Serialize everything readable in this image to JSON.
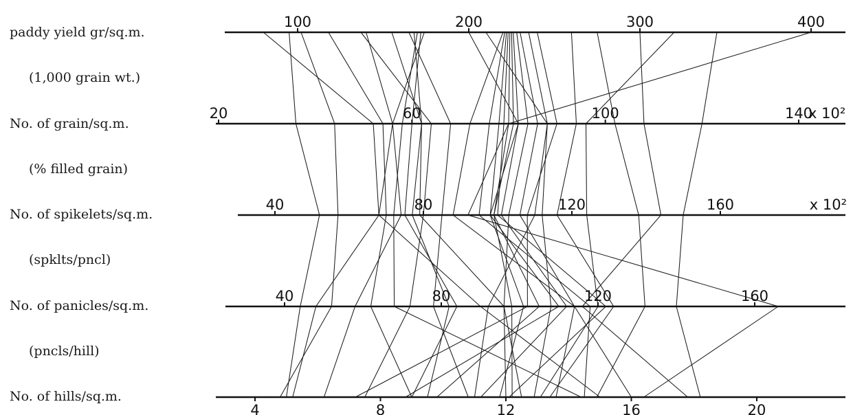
{
  "chart_data": {
    "type": "parallel_coordinates",
    "title": "",
    "row_labels": [
      "paddy yield gr/sq.m.",
      "(1,000 grain wt.)",
      "No. of grain/sq.m.",
      "(% filled grain)",
      "No. of spikelets/sq.m.",
      "(spklts/pncl)",
      "No. of panicles/sq.m.",
      "(pncls/hill)",
      "No. of hills/sq.m."
    ],
    "axes": [
      {
        "name": "paddy yield gr/sq.m.",
        "ticks": [
          100,
          200,
          300,
          400
        ],
        "tick_labels": [
          "100",
          "200",
          "300",
          "400"
        ],
        "suffix": ""
      },
      {
        "name": "No. of grain/sq.m.",
        "ticks": [
          20,
          60,
          100,
          140
        ],
        "tick_labels": [
          "20",
          "60",
          "100",
          "140"
        ],
        "suffix": "x 10²"
      },
      {
        "name": "No. of spikelets/sq.m.",
        "ticks": [
          40,
          80,
          120,
          160
        ],
        "tick_labels": [
          "40",
          "80",
          "120",
          "160"
        ],
        "suffix": "x 10²"
      },
      {
        "name": "No. of panicles/sq.m.",
        "ticks": [
          40,
          80,
          120,
          160
        ],
        "tick_labels": [
          "40",
          "80",
          "120",
          "160"
        ],
        "suffix": ""
      },
      {
        "name": "No. of hills/sq.m.",
        "ticks": [
          4,
          8,
          12,
          16,
          20
        ],
        "tick_labels": [
          "4",
          "8",
          "12",
          "16",
          "20"
        ],
        "suffix": ""
      }
    ],
    "lines": [
      [
        80,
        52,
        68,
        90,
        15
      ],
      [
        95,
        36,
        52,
        44,
        5
      ],
      [
        102,
        44,
        57,
        52,
        4.8
      ],
      [
        118,
        54,
        70,
        62,
        9
      ],
      [
        137,
        64,
        80,
        72,
        7.5
      ],
      [
        140,
        56,
        74,
        58,
        6.2
      ],
      [
        155,
        62,
        77,
        82,
        9.5
      ],
      [
        165,
        68,
        85,
        78,
        10.8
      ],
      [
        168,
        62,
        79,
        96,
        12
      ],
      [
        170,
        58,
        72,
        68,
        14.4
      ],
      [
        172,
        60,
        75,
        84,
        9
      ],
      [
        174,
        56,
        68,
        48,
        5.2
      ],
      [
        200,
        82,
        98,
        110,
        8.8
      ],
      [
        210,
        88,
        110,
        92,
        11
      ],
      [
        220,
        72,
        88,
        114,
        13.6
      ],
      [
        221,
        76,
        95,
        118,
        14.5
      ],
      [
        222,
        78,
        98,
        101,
        11.8
      ],
      [
        223,
        79,
        100,
        122,
        12.1
      ],
      [
        224,
        80,
        99,
        98,
        12.2
      ],
      [
        225,
        81,
        99,
        105,
        9.8
      ],
      [
        226,
        82,
        101,
        112,
        11.2
      ],
      [
        228,
        84,
        103,
        96,
        12.5
      ],
      [
        230,
        86,
        106,
        114,
        16
      ],
      [
        235,
        88,
        112,
        108,
        12.9
      ],
      [
        240,
        90,
        108,
        102,
        7.2
      ],
      [
        260,
        94,
        116,
        124,
        13.4
      ],
      [
        275,
        102,
        138,
        132,
        14.9
      ],
      [
        300,
        108,
        144,
        116,
        17.8
      ],
      [
        320,
        96,
        124,
        120,
        13.1
      ],
      [
        345,
        120,
        150,
        140,
        18.2
      ],
      [
        400,
        80,
        92,
        166,
        16.4
      ]
    ]
  }
}
